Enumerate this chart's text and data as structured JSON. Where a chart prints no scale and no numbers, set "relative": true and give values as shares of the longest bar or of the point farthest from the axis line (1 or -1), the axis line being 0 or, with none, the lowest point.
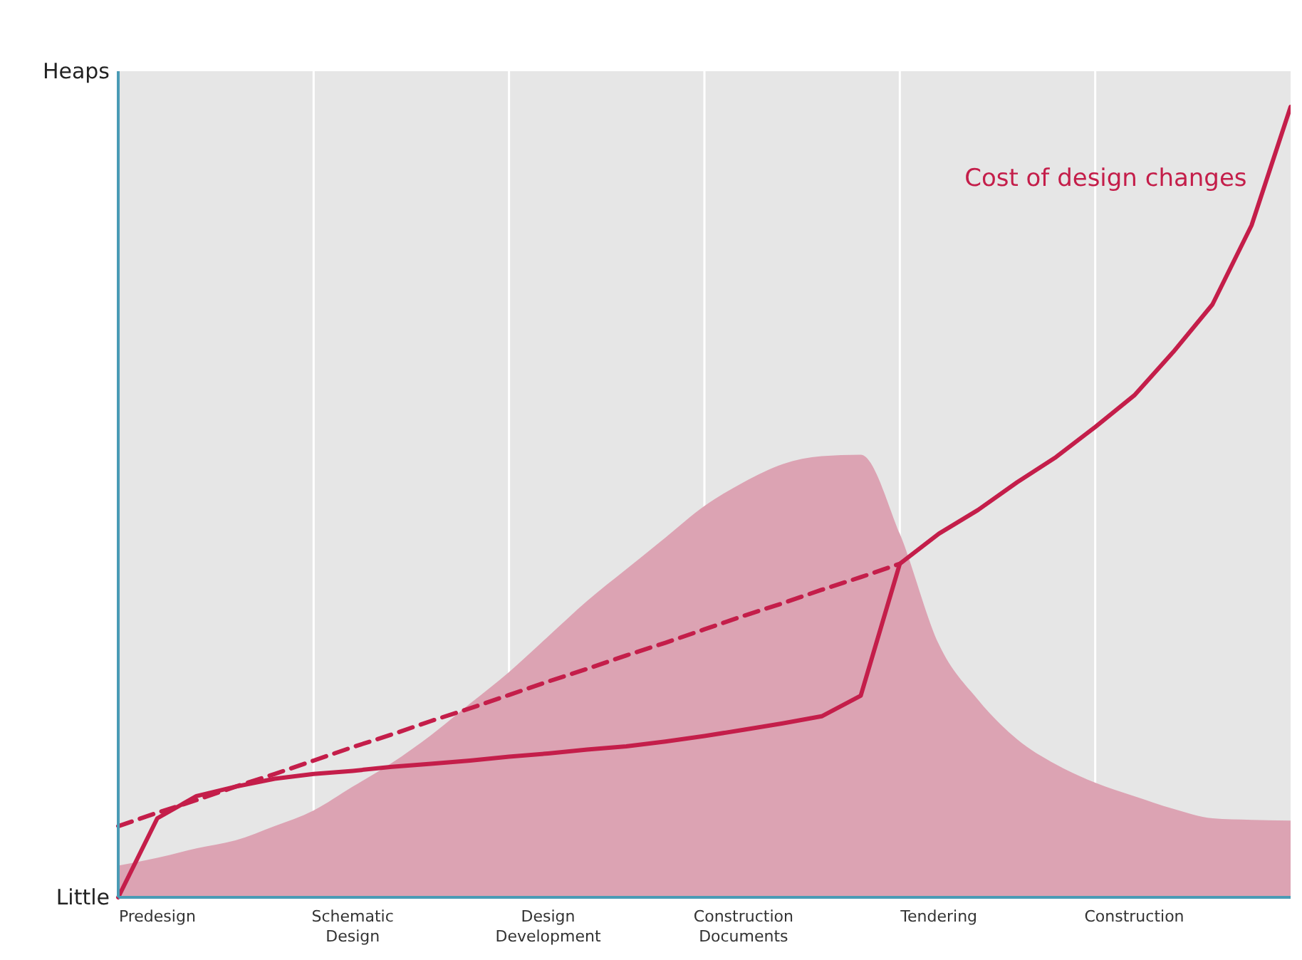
{
  "chart_data": {
    "type": "line",
    "relative": true,
    "categories": [
      null,
      "Predesign",
      null,
      null,
      null,
      null,
      "Schematic Design",
      null,
      null,
      null,
      null,
      "Design Development",
      null,
      null,
      null,
      null,
      "Construction Documents",
      null,
      null,
      null,
      null,
      "Tendering",
      null,
      null,
      null,
      null,
      "Construction",
      null,
      null,
      null,
      null
    ],
    "annotations": [
      "Heaps",
      "Little"
    ],
    "grid": "x",
    "series": [
      {
        "type": "area",
        "color": "#dca3b3",
        "values": [
          0.04,
          0.05,
          0.062,
          0.072,
          0.09,
          0.11,
          0.14,
          0.17,
          0.205,
          0.245,
          0.285,
          0.33,
          0.375,
          0.415,
          0.455,
          0.495,
          0.525,
          0.548,
          0.558,
          0.56,
          0.46,
          0.32,
          0.25,
          0.2,
          0.168,
          0.145,
          0.128,
          0.112,
          0.1,
          0.098,
          0.097
        ]
      },
      {
        "type": "line",
        "line_style": "dashed",
        "color": "#c41e4a",
        "values": [
          0.09,
          0.107,
          0.123,
          0.14,
          0.156,
          0.173,
          0.19,
          0.206,
          0.223,
          0.239,
          0.256,
          0.273,
          0.289,
          0.306,
          0.322,
          0.339,
          0.356,
          0.372,
          0.389,
          0.405,
          0.422,
          null,
          null,
          null,
          null,
          null,
          null,
          null,
          null,
          null,
          null
        ]
      },
      {
        "name": "Cost of design changes",
        "line_style": "solid",
        "color": "#c41e4a",
        "values": [
          0,
          0.1,
          0.128,
          0.14,
          0.15,
          0.156,
          0.16,
          0.165,
          0.169,
          0.173,
          0.178,
          0.182,
          0.187,
          0.191,
          0.197,
          0.204,
          0.212,
          0.22,
          0.229,
          0.255,
          0.422,
          0.46,
          0.49,
          0.525,
          0.557,
          0.595,
          0.635,
          0.69,
          0.75,
          0.85,
          1
        ]
      }
    ]
  }
}
